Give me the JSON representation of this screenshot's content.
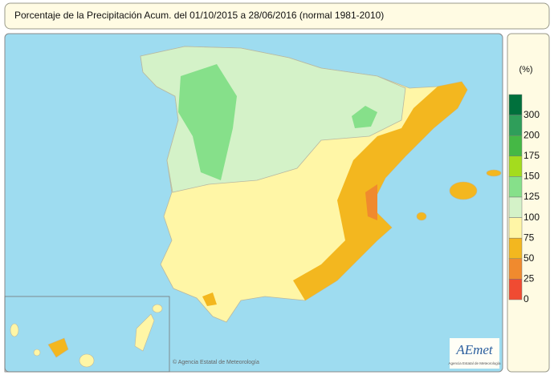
{
  "header": {
    "title": "Porcentaje de la Precipitación Acum. del 01/10/2015 a  28/06/2016  (normal 1981-2010)"
  },
  "legend": {
    "unit": "(%)",
    "ticks": [
      300,
      200,
      175,
      150,
      125,
      100,
      75,
      50,
      25,
      0
    ],
    "colors": [
      "#00703c",
      "#2f9e5a",
      "#45b845",
      "#a4dc1e",
      "#86e08a",
      "#d4f2c8",
      "#fff6a6",
      "#f3b71f",
      "#f08a2e",
      "#f04b32"
    ]
  },
  "footer": {
    "credit": "© Agencia Estatal de Meteorología",
    "logo": "AEmet",
    "logo_subtitle": "Agencia Estatal de Meteorología"
  }
}
